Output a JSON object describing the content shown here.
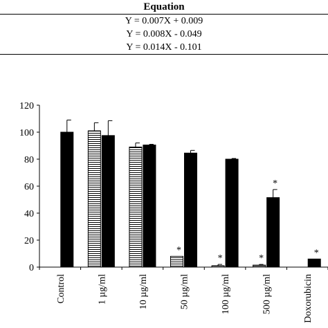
{
  "table": {
    "header": "Equation",
    "rows": [
      "Y = 0.007X + 0.009",
      "Y = 0.008X - 0.049",
      "Y = 0.014X - 0.101"
    ]
  },
  "chart_data": {
    "type": "bar",
    "categories": [
      "Control",
      "1 µg/ml",
      "10 µg/ml",
      "50 µg/ml",
      "100 µg/ml",
      "500 µg/ml",
      "Doxorubicin"
    ],
    "ylim": [
      0,
      120
    ],
    "yticks": [
      0,
      20,
      40,
      60,
      80,
      100,
      120
    ],
    "grid": false,
    "series": [
      {
        "pattern": "horizontal-stripes",
        "color": "#000000",
        "values": [
          null,
          101,
          89,
          8,
          1,
          1.5,
          null
        ],
        "errors": [
          null,
          6,
          3,
          0,
          1,
          0.5,
          null
        ],
        "significant": [
          false,
          false,
          false,
          true,
          true,
          true,
          false
        ]
      },
      {
        "pattern": "solid",
        "color": "#000000",
        "values": [
          100,
          97.5,
          90.5,
          84.5,
          80,
          51.5,
          6
        ],
        "errors": [
          9,
          11,
          0.5,
          2,
          0.5,
          6,
          0
        ],
        "significant": [
          false,
          false,
          false,
          false,
          false,
          true,
          true
        ]
      }
    ],
    "significance_mark": "*"
  }
}
